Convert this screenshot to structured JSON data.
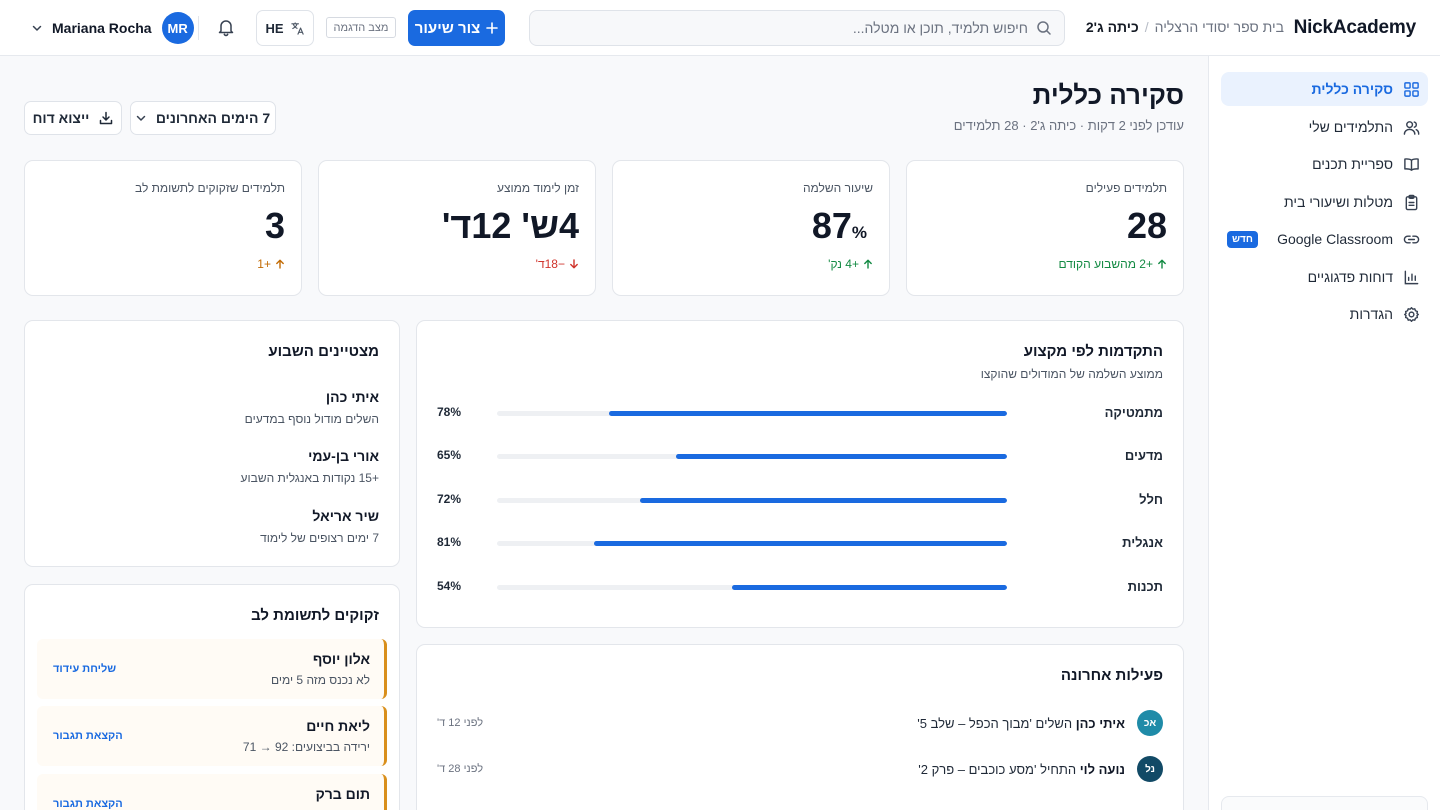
{
  "topbar": {
    "logo": "NickAcademy",
    "breadcrumb": {
      "school": "בית ספר יסודי הרצליה",
      "separator": "/",
      "class": "כיתה ג'2"
    },
    "search_placeholder": "חיפוש תלמיד, תוכן או מטלה...",
    "new_lesson_label": "צור שיעור",
    "demo_badge": "מצב הדגמה",
    "language": "HE",
    "user_name": "Mariana Rocha",
    "user_initials": "MR"
  },
  "sidebar": {
    "items": [
      {
        "label": "סקירה כללית",
        "icon": "grid-icon",
        "active": true
      },
      {
        "label": "התלמידים שלי",
        "icon": "users-icon"
      },
      {
        "label": "ספריית תכנים",
        "icon": "book-icon"
      },
      {
        "label": "מטלות ושיעורי בית",
        "icon": "clipboard-icon"
      },
      {
        "label": "Google Classroom",
        "icon": "link-icon",
        "badge": "חדש"
      },
      {
        "label": "דוחות פדגוגיים",
        "icon": "bar-chart-icon"
      },
      {
        "label": "הגדרות",
        "icon": "gear-icon"
      }
    ]
  },
  "header": {
    "title": "סקירה כללית",
    "subtitle": "עודכן לפני 2 דקות · כיתה ג'2 · 28 תלמידים",
    "range_label": "7 הימים האחרונים",
    "export_label": "ייצוא דוח"
  },
  "kpis": [
    {
      "label": "תלמידים פעילים",
      "value": "28",
      "unit": "",
      "delta": "+2 מהשבוע הקודם",
      "direction": "up",
      "tone": "green"
    },
    {
      "label": "שיעור השלמה",
      "value": "87",
      "unit": "%",
      "delta": "+4 נק'",
      "direction": "up",
      "tone": "green"
    },
    {
      "label": "זמן לימוד ממוצע",
      "value": "4ש' 12ד'",
      "unit": "",
      "delta": "−18ד'",
      "direction": "down",
      "tone": "red"
    },
    {
      "label": "תלמידים שזקוקים לתשומת לב",
      "value": "3",
      "unit": "",
      "delta": "+1",
      "direction": "up",
      "tone": "orange"
    }
  ],
  "progress": {
    "title": "התקדמות לפי מקצוע",
    "subtitle": "ממוצע השלמה של המודולים שהוקצו",
    "subjects": [
      {
        "name": "מתמטיקה",
        "pct_label": "78%",
        "value": 78
      },
      {
        "name": "מדעים",
        "pct_label": "65%",
        "value": 65
      },
      {
        "name": "חלל",
        "pct_label": "72%",
        "value": 72
      },
      {
        "name": "אנגלית",
        "pct_label": "81%",
        "value": 81
      },
      {
        "name": "תכנות",
        "pct_label": "54%",
        "value": 54
      }
    ]
  },
  "performers": {
    "title": "מצטיינים השבוע",
    "items": [
      {
        "name": "איתי כהן",
        "detail": "השלים מודול נוסף במדעים"
      },
      {
        "name": "אורי בן-עמי",
        "detail": "+15 נקודות באנגלית השבוע"
      },
      {
        "name": "שיר אריאל",
        "detail": "7 ימים רצופים של לימוד"
      }
    ]
  },
  "attention": {
    "title": "זקוקים לתשומת לב",
    "items": [
      {
        "name": "אלון יוסף",
        "detail": "לא נכנס מזה 5 ימים",
        "action": "שליחת עידוד"
      },
      {
        "name": "ליאת חיים",
        "detail": "ירידה בביצועים: 92 → 71",
        "action": "הקצאת תגבור"
      },
      {
        "name": "תום ברק",
        "detail": "",
        "action": "הקצאת תגבור"
      }
    ]
  },
  "activity": {
    "title": "פעילות אחרונה",
    "items": [
      {
        "initials": "אכ",
        "name": "איתי כהן",
        "text": "השלים 'מבוך הכפל – שלב 5'",
        "time": "לפני 12 ד'",
        "color": "#1f8ba8"
      },
      {
        "initials": "נל",
        "name": "נועה לוי",
        "text": "התחיל 'מסע כוכבים – פרק 2'",
        "time": "לפני 28 ד'",
        "color": "#124a66"
      }
    ]
  },
  "colors": {
    "accent": "#1a6ae0",
    "positive": "#138a43",
    "negative": "#d0342c",
    "warning": "#d98f1b"
  }
}
